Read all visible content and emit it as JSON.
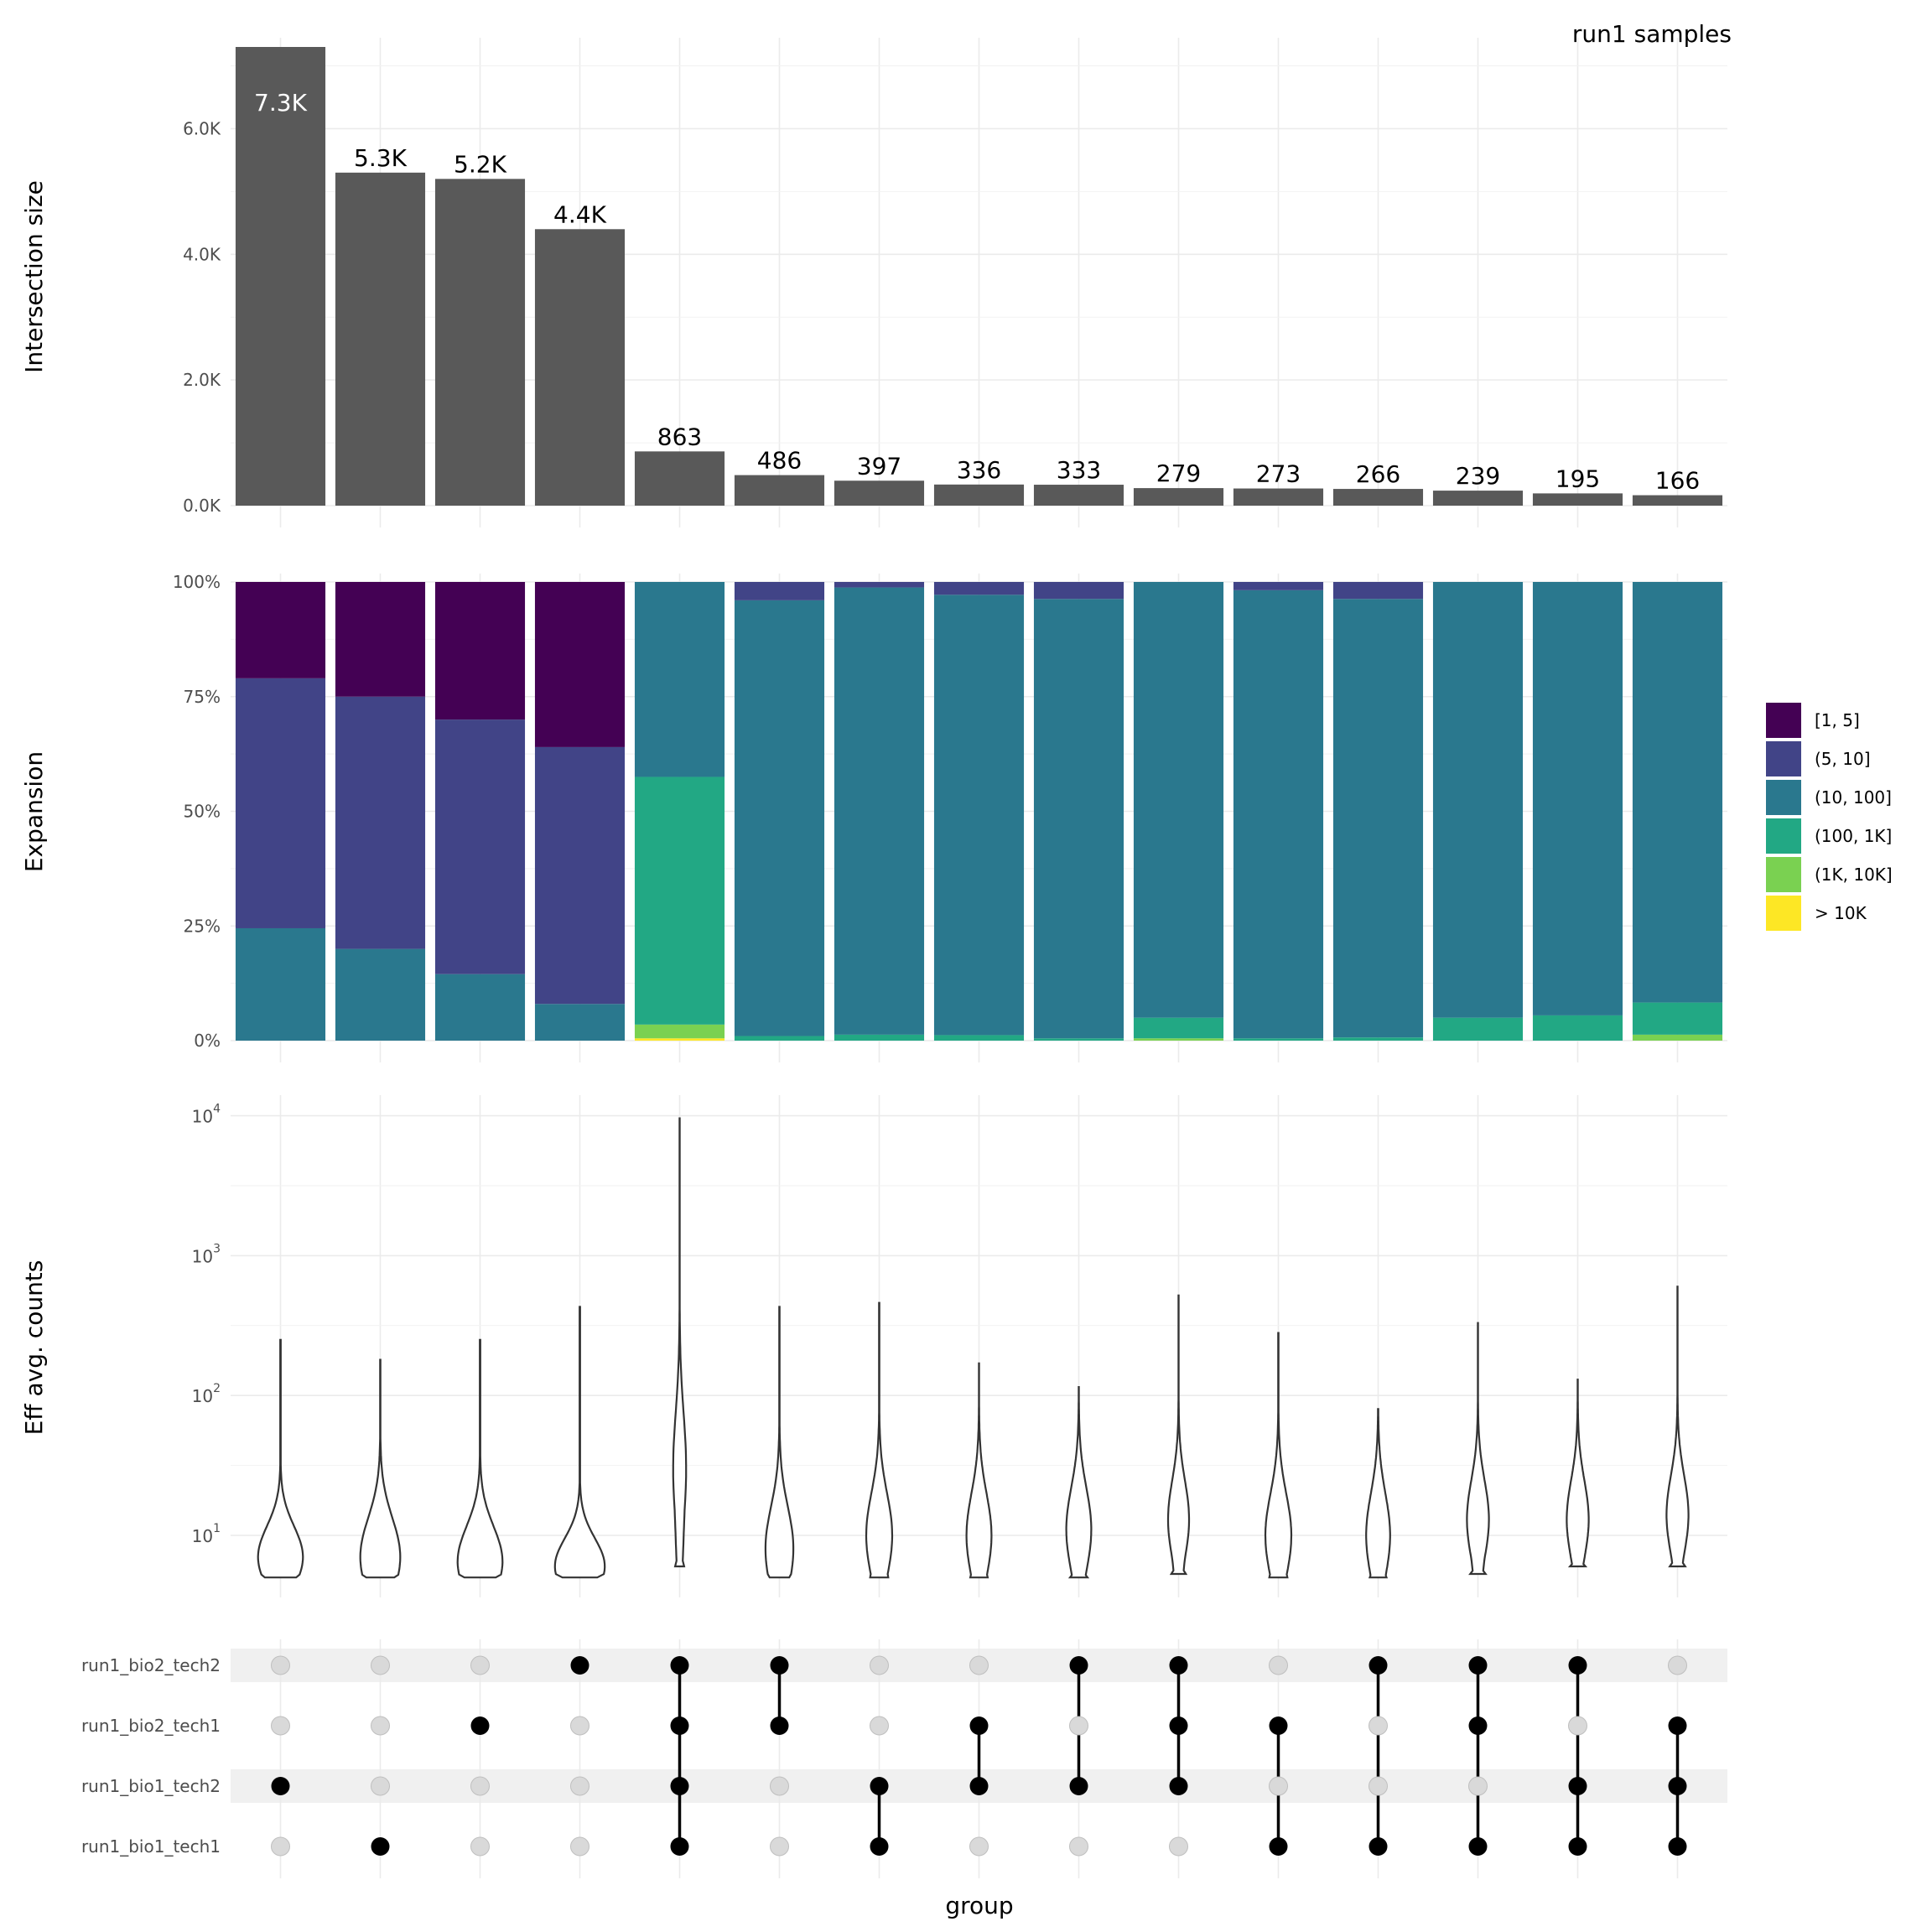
{
  "title": "run1 samples",
  "xlabel": "group",
  "chart_data": [
    {
      "type": "bar",
      "panel": "intersection",
      "ylabel": "Intersection size",
      "yticks": [
        "0.0K",
        "2.0K",
        "4.0K",
        "6.0K"
      ],
      "ylim": [
        0,
        7300
      ],
      "values": [
        7300,
        5300,
        5200,
        4400,
        863,
        486,
        397,
        336,
        333,
        279,
        273,
        266,
        239,
        195,
        166
      ],
      "labels": [
        "7.3K",
        "5.3K",
        "5.2K",
        "4.4K",
        "863",
        "486",
        "397",
        "336",
        "333",
        "279",
        "273",
        "266",
        "239",
        "195",
        "166"
      ],
      "bar_color": "#595959"
    },
    {
      "type": "bar",
      "panel": "expansion",
      "stacked": true,
      "ylabel": "Expansion",
      "yticks": [
        "0%",
        "25%",
        "50%",
        "75%",
        "100%"
      ],
      "series": [
        {
          "name": "[1, 5]",
          "color": "#440154",
          "values": [
            21,
            25,
            30,
            36,
            0,
            0,
            0,
            0,
            0,
            0,
            0,
            0,
            0,
            0,
            0
          ]
        },
        {
          "name": "(5, 10]",
          "color": "#414487",
          "values": [
            54.5,
            55,
            55.5,
            56,
            0,
            4,
            1.2,
            2.8,
            3.7,
            0,
            1.8,
            3.7,
            0,
            0,
            0
          ]
        },
        {
          "name": "(10, 100]",
          "color": "#2A788E",
          "values": [
            24.5,
            20,
            14.5,
            8,
            42.5,
            95,
            97.5,
            96,
            95.8,
            95,
            97.7,
            95.6,
            95,
            94.5,
            91.7
          ]
        },
        {
          "name": "(100, 1K]",
          "color": "#22A884",
          "values": [
            0,
            0,
            0,
            0,
            54,
            1,
            1.3,
            1.2,
            0.5,
            4.5,
            0.5,
            0.7,
            5,
            5.5,
            7
          ]
        },
        {
          "name": "(1K, 10K]",
          "color": "#7AD151",
          "values": [
            0,
            0,
            0,
            0,
            3,
            0,
            0,
            0,
            0,
            0.5,
            0,
            0,
            0,
            0,
            1.3
          ]
        },
        {
          "name": "> 10K",
          "color": "#FDE725",
          "values": [
            0,
            0,
            0,
            0,
            0.5,
            0,
            0,
            0,
            0,
            0,
            0,
            0,
            0,
            0,
            0
          ]
        }
      ]
    },
    {
      "type": "violin",
      "panel": "counts",
      "ylabel": "Eff avg. counts",
      "yscale": "log",
      "yticks": [
        {
          "base": "10",
          "exp": "1",
          "value": 10
        },
        {
          "base": "10",
          "exp": "2",
          "value": 100
        },
        {
          "base": "10",
          "exp": "3",
          "value": 1000
        },
        {
          "base": "10",
          "exp": "4",
          "value": 10000
        }
      ],
      "violins": [
        {
          "min": 5,
          "max": 250,
          "mode": 7,
          "width": 0.45,
          "sigma": 0.22
        },
        {
          "min": 5,
          "max": 180,
          "mode": 7,
          "width": 0.4,
          "sigma": 0.28
        },
        {
          "min": 5,
          "max": 250,
          "mode": 6.5,
          "width": 0.45,
          "sigma": 0.25
        },
        {
          "min": 5,
          "max": 430,
          "mode": 6,
          "width": 0.5,
          "sigma": 0.2
        },
        {
          "min": 6,
          "max": 9600,
          "mode": 30,
          "width": 0.13,
          "sigma": 0.4
        },
        {
          "min": 5,
          "max": 430,
          "mode": 8,
          "width": 0.28,
          "sigma": 0.3
        },
        {
          "min": 5,
          "max": 460,
          "mode": 10,
          "width": 0.26,
          "sigma": 0.3
        },
        {
          "min": 5,
          "max": 170,
          "mode": 10,
          "width": 0.25,
          "sigma": 0.3
        },
        {
          "min": 5,
          "max": 115,
          "mode": 11,
          "width": 0.25,
          "sigma": 0.3
        },
        {
          "min": 5.3,
          "max": 520,
          "mode": 13,
          "width": 0.21,
          "sigma": 0.28
        },
        {
          "min": 5,
          "max": 280,
          "mode": 10,
          "width": 0.26,
          "sigma": 0.3
        },
        {
          "min": 5,
          "max": 80,
          "mode": 10,
          "width": 0.24,
          "sigma": 0.3
        },
        {
          "min": 5.3,
          "max": 330,
          "mode": 13,
          "width": 0.22,
          "sigma": 0.28
        },
        {
          "min": 6,
          "max": 130,
          "mode": 13,
          "width": 0.22,
          "sigma": 0.28
        },
        {
          "min": 6,
          "max": 600,
          "mode": 14,
          "width": 0.22,
          "sigma": 0.28
        }
      ]
    },
    {
      "type": "matrix",
      "panel": "membership",
      "sets": [
        "run1_bio2_tech2",
        "run1_bio2_tech1",
        "run1_bio1_tech2",
        "run1_bio1_tech1"
      ],
      "membership": [
        [
          0,
          0,
          1,
          0
        ],
        [
          0,
          0,
          0,
          1
        ],
        [
          0,
          1,
          0,
          0
        ],
        [
          1,
          0,
          0,
          0
        ],
        [
          1,
          1,
          1,
          1
        ],
        [
          1,
          1,
          0,
          0
        ],
        [
          0,
          0,
          1,
          1
        ],
        [
          0,
          1,
          1,
          0
        ],
        [
          1,
          0,
          1,
          0
        ],
        [
          1,
          1,
          1,
          0
        ],
        [
          0,
          1,
          0,
          1
        ],
        [
          1,
          0,
          0,
          1
        ],
        [
          1,
          1,
          0,
          1
        ],
        [
          1,
          0,
          1,
          1
        ],
        [
          0,
          1,
          1,
          1
        ]
      ]
    }
  ]
}
